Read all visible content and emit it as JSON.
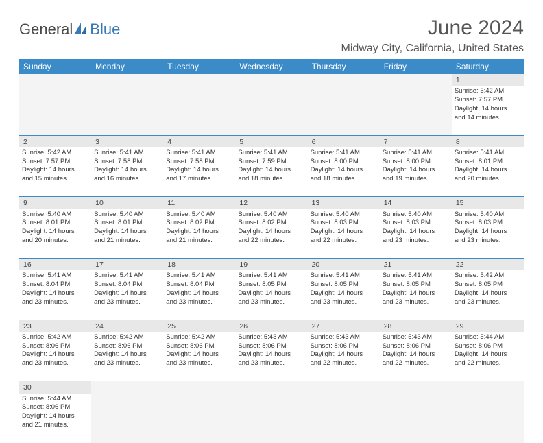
{
  "brand": {
    "word1": "General",
    "word2": "Blue"
  },
  "title": "June 2024",
  "location": "Midway City, California, United States",
  "colors": {
    "header_bg": "#3b8bc8",
    "header_text": "#ffffff",
    "daynum_bg": "#e8e8e8",
    "empty_bg": "#f4f4f4",
    "row_border": "#3b8bc8",
    "brand_gray": "#4a4a4a",
    "brand_blue": "#3979b5",
    "text": "#333333"
  },
  "weekdays": [
    "Sunday",
    "Monday",
    "Tuesday",
    "Wednesday",
    "Thursday",
    "Friday",
    "Saturday"
  ],
  "weeks": [
    [
      null,
      null,
      null,
      null,
      null,
      null,
      {
        "n": "1",
        "sunrise": "5:42 AM",
        "sunset": "7:57 PM",
        "h": "14",
        "m": "14"
      }
    ],
    [
      {
        "n": "2",
        "sunrise": "5:42 AM",
        "sunset": "7:57 PM",
        "h": "14",
        "m": "15"
      },
      {
        "n": "3",
        "sunrise": "5:41 AM",
        "sunset": "7:58 PM",
        "h": "14",
        "m": "16"
      },
      {
        "n": "4",
        "sunrise": "5:41 AM",
        "sunset": "7:58 PM",
        "h": "14",
        "m": "17"
      },
      {
        "n": "5",
        "sunrise": "5:41 AM",
        "sunset": "7:59 PM",
        "h": "14",
        "m": "18"
      },
      {
        "n": "6",
        "sunrise": "5:41 AM",
        "sunset": "8:00 PM",
        "h": "14",
        "m": "18"
      },
      {
        "n": "7",
        "sunrise": "5:41 AM",
        "sunset": "8:00 PM",
        "h": "14",
        "m": "19"
      },
      {
        "n": "8",
        "sunrise": "5:41 AM",
        "sunset": "8:01 PM",
        "h": "14",
        "m": "20"
      }
    ],
    [
      {
        "n": "9",
        "sunrise": "5:40 AM",
        "sunset": "8:01 PM",
        "h": "14",
        "m": "20"
      },
      {
        "n": "10",
        "sunrise": "5:40 AM",
        "sunset": "8:01 PM",
        "h": "14",
        "m": "21"
      },
      {
        "n": "11",
        "sunrise": "5:40 AM",
        "sunset": "8:02 PM",
        "h": "14",
        "m": "21"
      },
      {
        "n": "12",
        "sunrise": "5:40 AM",
        "sunset": "8:02 PM",
        "h": "14",
        "m": "22"
      },
      {
        "n": "13",
        "sunrise": "5:40 AM",
        "sunset": "8:03 PM",
        "h": "14",
        "m": "22"
      },
      {
        "n": "14",
        "sunrise": "5:40 AM",
        "sunset": "8:03 PM",
        "h": "14",
        "m": "23"
      },
      {
        "n": "15",
        "sunrise": "5:40 AM",
        "sunset": "8:03 PM",
        "h": "14",
        "m": "23"
      }
    ],
    [
      {
        "n": "16",
        "sunrise": "5:41 AM",
        "sunset": "8:04 PM",
        "h": "14",
        "m": "23"
      },
      {
        "n": "17",
        "sunrise": "5:41 AM",
        "sunset": "8:04 PM",
        "h": "14",
        "m": "23"
      },
      {
        "n": "18",
        "sunrise": "5:41 AM",
        "sunset": "8:04 PM",
        "h": "14",
        "m": "23"
      },
      {
        "n": "19",
        "sunrise": "5:41 AM",
        "sunset": "8:05 PM",
        "h": "14",
        "m": "23"
      },
      {
        "n": "20",
        "sunrise": "5:41 AM",
        "sunset": "8:05 PM",
        "h": "14",
        "m": "23"
      },
      {
        "n": "21",
        "sunrise": "5:41 AM",
        "sunset": "8:05 PM",
        "h": "14",
        "m": "23"
      },
      {
        "n": "22",
        "sunrise": "5:42 AM",
        "sunset": "8:05 PM",
        "h": "14",
        "m": "23"
      }
    ],
    [
      {
        "n": "23",
        "sunrise": "5:42 AM",
        "sunset": "8:06 PM",
        "h": "14",
        "m": "23"
      },
      {
        "n": "24",
        "sunrise": "5:42 AM",
        "sunset": "8:06 PM",
        "h": "14",
        "m": "23"
      },
      {
        "n": "25",
        "sunrise": "5:42 AM",
        "sunset": "8:06 PM",
        "h": "14",
        "m": "23"
      },
      {
        "n": "26",
        "sunrise": "5:43 AM",
        "sunset": "8:06 PM",
        "h": "14",
        "m": "23"
      },
      {
        "n": "27",
        "sunrise": "5:43 AM",
        "sunset": "8:06 PM",
        "h": "14",
        "m": "22"
      },
      {
        "n": "28",
        "sunrise": "5:43 AM",
        "sunset": "8:06 PM",
        "h": "14",
        "m": "22"
      },
      {
        "n": "29",
        "sunrise": "5:44 AM",
        "sunset": "8:06 PM",
        "h": "14",
        "m": "22"
      }
    ],
    [
      {
        "n": "30",
        "sunrise": "5:44 AM",
        "sunset": "8:06 PM",
        "h": "14",
        "m": "21"
      },
      null,
      null,
      null,
      null,
      null,
      null
    ]
  ]
}
